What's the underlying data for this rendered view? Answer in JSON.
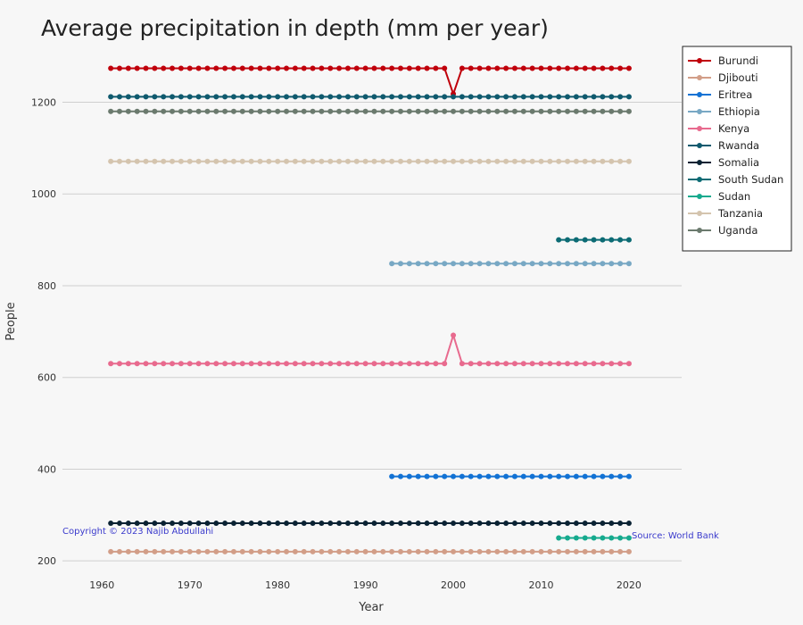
{
  "chart_data": {
    "type": "line",
    "title": "Average precipitation in depth (mm per year)",
    "xlabel": "Year",
    "ylabel": "People",
    "xlim": [
      1955.5,
      2026
    ],
    "ylim": [
      177,
      1345
    ],
    "x_ticks": [
      1960,
      1970,
      1980,
      1990,
      2000,
      2010,
      2020
    ],
    "y_ticks": [
      200,
      400,
      600,
      800,
      1000,
      1200
    ],
    "grid": "horizontal",
    "legend_position": "top-right",
    "series": [
      {
        "name": "Burundi",
        "color": "#c0000b",
        "x_start": 1961,
        "x_end": 2020,
        "value": 1274,
        "overrides": {
          "2000": 1218
        }
      },
      {
        "name": "Djibouti",
        "color": "#d29e88",
        "x_start": 1961,
        "x_end": 2020,
        "value": 220,
        "overrides": {}
      },
      {
        "name": "Eritrea",
        "color": "#1272d4",
        "x_start": 1993,
        "x_end": 2020,
        "value": 384,
        "overrides": {}
      },
      {
        "name": "Ethiopia",
        "color": "#78a8c4",
        "x_start": 1993,
        "x_end": 2020,
        "value": 848,
        "overrides": {}
      },
      {
        "name": "Kenya",
        "color": "#e86a8e",
        "x_start": 1961,
        "x_end": 2020,
        "value": 630,
        "overrides": {
          "2000": 692
        }
      },
      {
        "name": "Rwanda",
        "color": "#0f5a6e",
        "x_start": 1961,
        "x_end": 2020,
        "value": 1212,
        "overrides": {}
      },
      {
        "name": "Somalia",
        "color": "#0a2233",
        "x_start": 1961,
        "x_end": 2020,
        "value": 282,
        "overrides": {}
      },
      {
        "name": "South Sudan",
        "color": "#0c6b74",
        "x_start": 2012,
        "x_end": 2020,
        "value": 900,
        "overrides": {}
      },
      {
        "name": "Sudan",
        "color": "#16aa8e",
        "x_start": 2012,
        "x_end": 2020,
        "value": 250,
        "overrides": {}
      },
      {
        "name": "Tanzania",
        "color": "#d4c4ae",
        "x_start": 1961,
        "x_end": 2020,
        "value": 1071,
        "overrides": {}
      },
      {
        "name": "Uganda",
        "color": "#6b7a6e",
        "x_start": 1961,
        "x_end": 2020,
        "value": 1180,
        "overrides": {}
      }
    ],
    "annotations": {
      "copyright": "Copyright © 2023 Najib Abdullahi",
      "source": "Source: World Bank"
    }
  }
}
